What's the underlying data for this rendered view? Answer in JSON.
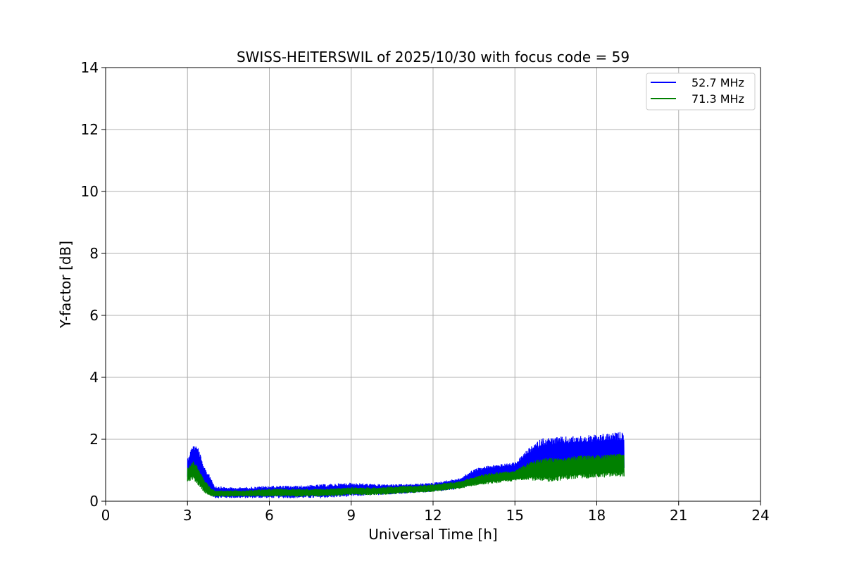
{
  "chart_data": {
    "type": "line",
    "title": "SWISS-HEITERSWIL of 2025/10/30 with focus code = 59",
    "xlabel": "Universal Time [h]",
    "ylabel": "Y-factor [dB]",
    "xlim": [
      0,
      24
    ],
    "ylim": [
      0,
      14
    ],
    "xticks": [
      0,
      3,
      6,
      9,
      12,
      15,
      18,
      21,
      24
    ],
    "yticks": [
      0,
      2,
      4,
      6,
      8,
      10,
      12,
      14
    ],
    "xtick_labels": [
      "0",
      "3",
      "6",
      "9",
      "12",
      "15",
      "18",
      "21",
      "24"
    ],
    "ytick_labels": [
      "0",
      "2",
      "4",
      "6",
      "8",
      "10",
      "12",
      "14"
    ],
    "grid": true,
    "legend_position": "top-right",
    "series": [
      {
        "name": "52.7 MHz",
        "color": "#0000ff",
        "x": [
          3.0,
          3.2,
          3.4,
          3.6,
          3.8,
          4.0,
          4.5,
          5.0,
          6.0,
          7.0,
          8.0,
          9.0,
          10.0,
          11.0,
          12.0,
          13.0,
          13.5,
          14.0,
          15.0,
          15.5,
          16.0,
          17.0,
          18.0,
          19.0
        ],
        "lower": [
          0.7,
          1.0,
          0.8,
          0.4,
          0.2,
          0.1,
          0.1,
          0.1,
          0.1,
          0.1,
          0.1,
          0.15,
          0.2,
          0.25,
          0.3,
          0.4,
          0.55,
          0.65,
          0.75,
          0.9,
          0.85,
          0.9,
          0.95,
          0.9
        ],
        "upper": [
          1.4,
          1.85,
          1.75,
          1.1,
          0.9,
          0.5,
          0.45,
          0.45,
          0.5,
          0.5,
          0.55,
          0.6,
          0.55,
          0.55,
          0.6,
          0.75,
          1.05,
          1.15,
          1.25,
          1.7,
          2.05,
          2.1,
          2.15,
          2.25
        ]
      },
      {
        "name": "71.3 MHz",
        "color": "#008000",
        "x": [
          3.0,
          3.2,
          3.4,
          3.6,
          3.8,
          4.0,
          4.5,
          5.0,
          6.0,
          7.0,
          8.0,
          9.0,
          10.0,
          11.0,
          12.0,
          13.0,
          13.5,
          14.0,
          15.0,
          15.5,
          16.0,
          17.0,
          18.0,
          19.0
        ],
        "lower": [
          0.6,
          0.7,
          0.5,
          0.3,
          0.15,
          0.15,
          0.15,
          0.15,
          0.15,
          0.15,
          0.15,
          0.2,
          0.2,
          0.25,
          0.3,
          0.4,
          0.5,
          0.55,
          0.65,
          0.7,
          0.6,
          0.7,
          0.75,
          0.8
        ],
        "upper": [
          1.1,
          1.3,
          1.1,
          0.7,
          0.5,
          0.35,
          0.35,
          0.35,
          0.4,
          0.4,
          0.4,
          0.45,
          0.45,
          0.5,
          0.55,
          0.65,
          0.8,
          0.9,
          1.0,
          1.25,
          1.4,
          1.45,
          1.5,
          1.55
        ]
      }
    ]
  }
}
